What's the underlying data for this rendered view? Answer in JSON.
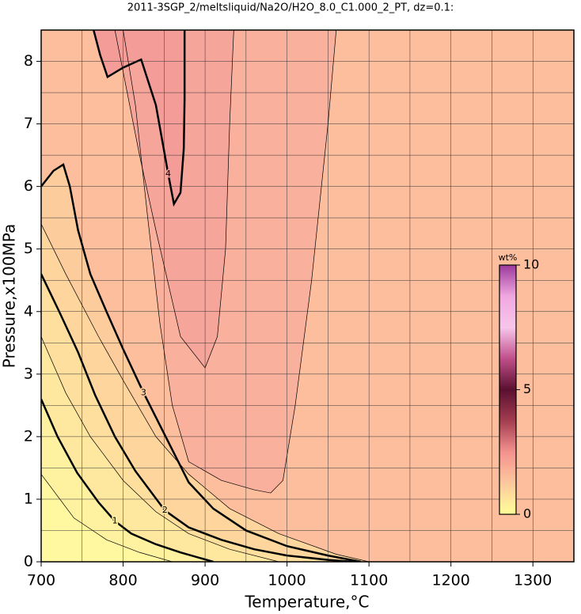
{
  "chart_data": {
    "type": "contour",
    "title": "2011-3SGP_2/meltsliquid/Na2O/H2O_8.0_C1.000_2_PT, dz=0.1:",
    "x_label": "Temperature,°C",
    "y_label": "Pressure,x100MPa",
    "xlim": [
      700,
      1350
    ],
    "ylim": [
      0,
      8.5
    ],
    "xticks": [
      700,
      800,
      900,
      1000,
      1100,
      1200,
      1300
    ],
    "yticks": [
      0,
      1,
      2,
      3,
      4,
      5,
      6,
      7,
      8
    ],
    "xgrid": [
      750,
      850,
      950,
      1050,
      1150,
      1250
    ],
    "ygrid": [
      0.5,
      1.5,
      2.5,
      3.5,
      4.5,
      5.5,
      6.5,
      7.5
    ],
    "background": "#fdbe9e",
    "contours": [
      {
        "level": 3.6,
        "major": false,
        "fill_to": "self",
        "fill": "#f9b09d",
        "x": [
          800,
          815,
          830,
          845,
          860,
          880,
          920,
          960,
          980,
          995,
          1010,
          1030,
          1050,
          1060
        ],
        "y": [
          8.5,
          7.3,
          5.5,
          3.8,
          2.5,
          1.6,
          1.3,
          1.15,
          1.1,
          1.3,
          2.5,
          4.5,
          7,
          8.5
        ]
      },
      {
        "level": 3.8,
        "major": false,
        "fill_to": "self",
        "fill": "#f6a59b",
        "x": [
          790,
          805,
          820,
          840,
          870,
          900,
          915,
          925,
          930,
          935
        ],
        "y": [
          8.5,
          7.5,
          6.5,
          5.3,
          3.6,
          3.1,
          3.6,
          5,
          7,
          8.5
        ]
      },
      {
        "level": 4,
        "major": true,
        "fill_to": "self",
        "fill": "#f49d98",
        "x": [
          764,
          772,
          781,
          800,
          822,
          840,
          855,
          862,
          870,
          874,
          875,
          875
        ],
        "y": [
          8.5,
          8.1,
          7.75,
          7.9,
          8.03,
          7.3,
          6.2,
          5.72,
          5.9,
          6.6,
          7.4,
          8.5
        ]
      },
      {
        "level": 3,
        "major": true,
        "fill_to": "origin",
        "fill": "#fdcc9d",
        "x": [
          700,
          715,
          727,
          735,
          745,
          760,
          780,
          800,
          825,
          850,
          880,
          910,
          950,
          1000,
          1050,
          1090
        ],
        "y": [
          6.0,
          6.25,
          6.35,
          6.0,
          5.3,
          4.6,
          3.99,
          3.4,
          2.7,
          2.05,
          1.27,
          0.85,
          0.5,
          0.25,
          0.1,
          0
        ]
      },
      {
        "level": 2.5,
        "major": false,
        "fill_to": "origin",
        "fill": "#fdd59d",
        "x": [
          700,
          730,
          770,
          800,
          840,
          880,
          930,
          990,
          1060,
          1100
        ],
        "y": [
          5.4,
          4.6,
          3.6,
          2.9,
          2.0,
          1.4,
          0.85,
          0.45,
          0.12,
          0
        ]
      },
      {
        "level": 2,
        "major": true,
        "fill_to": "origin",
        "fill": "#fedf9e",
        "x": [
          700,
          722,
          745,
          766,
          790,
          815,
          851,
          880,
          920,
          960,
          1000,
          1050,
          1080
        ],
        "y": [
          4.6,
          4.0,
          3.35,
          2.66,
          2.0,
          1.45,
          0.82,
          0.55,
          0.35,
          0.2,
          0.1,
          0.03,
          0
        ]
      },
      {
        "level": 1.5,
        "major": false,
        "fill_to": "origin",
        "fill": "#fee89f",
        "x": [
          700,
          730,
          760,
          800,
          840,
          880,
          930,
          990
        ],
        "y": [
          3.6,
          2.7,
          2.0,
          1.3,
          0.8,
          0.45,
          0.2,
          0
        ]
      },
      {
        "level": 1,
        "major": true,
        "fill_to": "origin",
        "fill": "#fef1a0",
        "x": [
          700,
          720,
          744,
          770,
          790,
          810,
          840,
          870,
          910
        ],
        "y": [
          2.6,
          2.0,
          1.42,
          0.95,
          0.65,
          0.45,
          0.28,
          0.15,
          0
        ]
      },
      {
        "level": 0.5,
        "major": false,
        "fill_to": "origin",
        "fill": "#fff8a0",
        "x": [
          700,
          740,
          780,
          820,
          860
        ],
        "y": [
          1.4,
          0.7,
          0.35,
          0.15,
          0
        ]
      }
    ],
    "colorbar": {
      "label": "wt%",
      "clim": [
        0,
        10
      ],
      "ticks": [
        0,
        5,
        10
      ],
      "colors": [
        "#ffff99",
        "#fdc89e",
        "#f4928f",
        "#a33d50",
        "#5a1030",
        "#c0508a",
        "#f7c6ea",
        "#f0a8e0",
        "#9c3a9c"
      ]
    }
  }
}
